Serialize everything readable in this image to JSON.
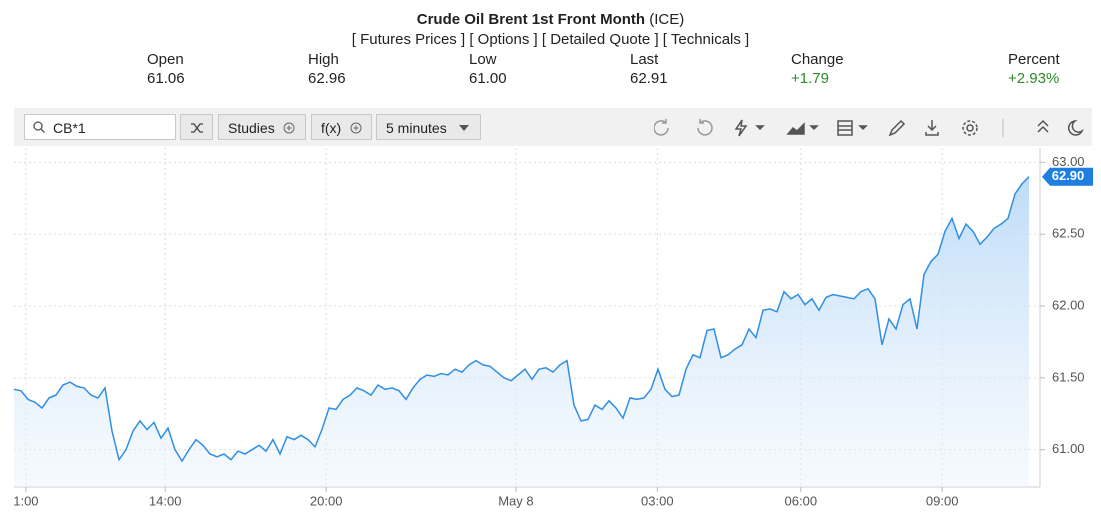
{
  "header": {
    "title": "Crude Oil Brent 1st Front Month",
    "exchange": "(ICE)",
    "links": [
      "[ Futures Prices ]",
      "[ Options ]",
      "[ Detailed Quote ]",
      "[ Technicals ]"
    ]
  },
  "quote": [
    {
      "label": "Open",
      "value": "61.06"
    },
    {
      "label": "High",
      "value": "62.96"
    },
    {
      "label": "Low",
      "value": "61.00"
    },
    {
      "label": "Last",
      "value": "62.91"
    },
    {
      "label": "Change",
      "value": "+1.79"
    },
    {
      "label": "Percent",
      "value": "+2.93%"
    }
  ],
  "toolbar": {
    "symbol": "CB*1",
    "studies": "Studies",
    "fx": "f(x)",
    "interval": "5 minutes"
  },
  "chart_data": {
    "type": "area",
    "color": "#2f8fe3",
    "grid": true,
    "values": [
      61.42,
      61.41,
      61.35,
      61.33,
      61.29,
      61.36,
      61.38,
      61.45,
      61.47,
      61.44,
      61.43,
      61.38,
      61.36,
      61.43,
      61.13,
      60.93,
      61.0,
      61.13,
      61.2,
      61.14,
      61.19,
      61.08,
      61.15,
      61.0,
      60.92,
      61.0,
      61.07,
      61.03,
      60.97,
      60.95,
      60.97,
      60.93,
      60.99,
      60.97,
      61.0,
      61.03,
      60.99,
      61.07,
      60.97,
      61.09,
      61.07,
      61.1,
      61.07,
      61.02,
      61.14,
      61.29,
      61.28,
      61.35,
      61.38,
      61.43,
      61.41,
      61.38,
      61.45,
      61.42,
      61.43,
      61.41,
      61.35,
      61.43,
      61.49,
      61.52,
      61.51,
      61.53,
      61.52,
      61.56,
      61.54,
      61.59,
      61.62,
      61.59,
      61.58,
      61.54,
      61.5,
      61.48,
      61.52,
      61.56,
      61.49,
      61.56,
      61.57,
      61.54,
      61.59,
      61.62,
      61.31,
      61.2,
      61.21,
      61.31,
      61.28,
      61.34,
      61.29,
      61.22,
      61.36,
      61.35,
      61.36,
      61.42,
      61.56,
      61.42,
      61.37,
      61.38,
      61.56,
      61.66,
      61.64,
      61.83,
      61.84,
      61.64,
      61.66,
      61.7,
      61.73,
      61.84,
      61.78,
      61.97,
      61.98,
      61.96,
      62.1,
      62.05,
      62.08,
      62.01,
      62.05,
      61.97,
      62.06,
      62.08,
      62.07,
      62.06,
      62.05,
      62.1,
      62.12,
      62.05,
      61.73,
      61.91,
      61.84,
      62.01,
      62.05,
      61.84,
      62.22,
      62.31,
      62.36,
      62.52,
      62.61,
      62.47,
      62.57,
      62.52,
      62.43,
      62.48,
      62.54,
      62.57,
      62.61,
      62.78,
      62.85,
      62.9
    ],
    "xlim": [
      0,
      146
    ],
    "xticks": [
      {
        "value": 1.7,
        "label": "1:00"
      },
      {
        "value": 21.6,
        "label": "14:00"
      },
      {
        "value": 44.6,
        "label": "20:00"
      },
      {
        "value": 71.7,
        "label": "May 8"
      },
      {
        "value": 91.9,
        "label": "03:00"
      },
      {
        "value": 112.4,
        "label": "06:00"
      },
      {
        "value": 132.6,
        "label": "09:00"
      }
    ],
    "ylim": [
      60.74,
      63.1
    ],
    "yticks": [
      {
        "value": 61,
        "label": "61.00"
      },
      {
        "value": 61.5,
        "label": "61.50"
      },
      {
        "value": 62,
        "label": "62.00"
      },
      {
        "value": 62.5,
        "label": "62.50"
      },
      {
        "value": 63,
        "label": "63.00"
      }
    ],
    "last_tag": {
      "value": 62.9,
      "label": "62.90"
    }
  }
}
